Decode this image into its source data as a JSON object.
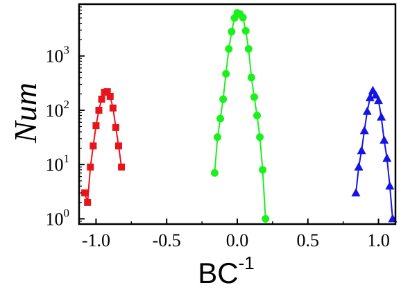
{
  "chart_data": {
    "type": "scatter",
    "xlabel": "BC",
    "xlabel_superscript": "-1",
    "ylabel": "Num",
    "y_scale": "log",
    "xlim": [
      -1.12,
      1.12
    ],
    "ylim": [
      0.8,
      9000
    ],
    "x_ticks": [
      -1.0,
      -0.5,
      0.0,
      0.5,
      1.0
    ],
    "x_tick_labels": [
      "-1.0",
      "-0.5",
      "0.0",
      "0.5",
      "1.0"
    ],
    "y_ticks": [
      1,
      10,
      100,
      1000
    ],
    "y_tick_labels": [
      {
        "base": "10",
        "exp": "0"
      },
      {
        "base": "10",
        "exp": "1"
      },
      {
        "base": "10",
        "exp": "2"
      },
      {
        "base": "10",
        "exp": "3"
      }
    ],
    "grid": false,
    "series": [
      {
        "marker": "square",
        "color": "#e8141c",
        "x": [
          -1.08,
          -1.06,
          -1.04,
          -1.02,
          -1.0,
          -0.98,
          -0.96,
          -0.94,
          -0.92,
          -0.9,
          -0.88,
          -0.86,
          -0.84,
          -0.82
        ],
        "y": [
          3,
          2,
          9,
          22,
          52,
          100,
          160,
          215,
          220,
          180,
          110,
          48,
          22,
          9
        ]
      },
      {
        "marker": "circle",
        "color": "#1cf01c",
        "x": [
          -0.16,
          -0.14,
          -0.12,
          -0.1,
          -0.08,
          -0.06,
          -0.04,
          -0.02,
          0.0,
          0.02,
          0.04,
          0.06,
          0.08,
          0.1,
          0.12,
          0.14,
          0.16,
          0.18,
          0.2
        ],
        "y": [
          7,
          32,
          70,
          160,
          470,
          1350,
          2800,
          5000,
          6200,
          5900,
          5100,
          2900,
          1350,
          400,
          175,
          80,
          32,
          8,
          1
        ]
      },
      {
        "marker": "triangle",
        "color": "#1414e6",
        "x": [
          0.84,
          0.86,
          0.88,
          0.9,
          0.92,
          0.94,
          0.96,
          0.98,
          1.0,
          1.02,
          1.04,
          1.06,
          1.08,
          1.1
        ],
        "y": [
          3,
          9,
          18,
          42,
          95,
          170,
          230,
          190,
          150,
          75,
          28,
          13,
          4,
          1
        ]
      }
    ]
  }
}
